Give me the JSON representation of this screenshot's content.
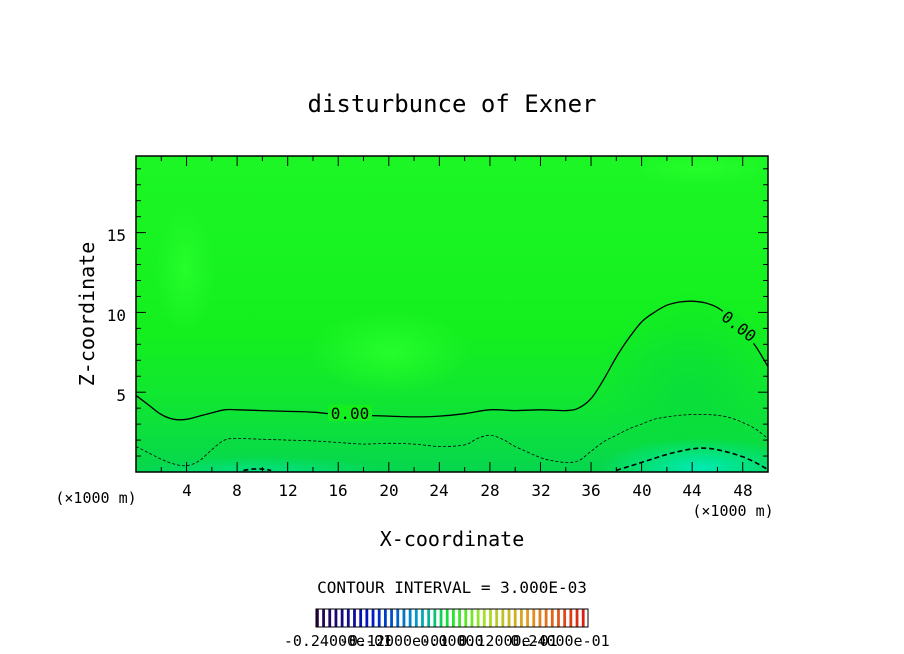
{
  "chart_data": {
    "type": "contour",
    "title": "disturbunce of Exner",
    "xlabel": "X-coordinate",
    "ylabel": "Z-coordinate",
    "x_unit_left": "(×1000 m)",
    "x_unit_right": "(×1000 m)",
    "xlim": [
      0,
      50
    ],
    "ylim": [
      0,
      19.8
    ],
    "x_ticks": [
      "4",
      "8",
      "12",
      "16",
      "20",
      "24",
      "28",
      "32",
      "36",
      "40",
      "44",
      "48"
    ],
    "y_ticks": [
      "5",
      "10",
      "15"
    ],
    "contour_interval_text": "CONTOUR INTERVAL = 3.000E-03",
    "colorbar_labels": [
      "-0.24000e-01",
      "-0.12000e-01",
      "0.00000",
      "0.12000e-01",
      "0.24000e-01"
    ],
    "contour_label": "0.00",
    "zero_contour": {
      "x": [
        0,
        1,
        2,
        3,
        4,
        5,
        6,
        7,
        8,
        10,
        12,
        14,
        16,
        18,
        20,
        22,
        24,
        26,
        28,
        30,
        32,
        34,
        35,
        36,
        37,
        38,
        39,
        40,
        41,
        42,
        43,
        44,
        45,
        46,
        47,
        48,
        49,
        50
      ],
      "y": [
        4.8,
        4.2,
        3.6,
        3.3,
        3.3,
        3.5,
        3.7,
        3.9,
        3.9,
        3.85,
        3.8,
        3.75,
        3.6,
        3.55,
        3.5,
        3.45,
        3.5,
        3.65,
        3.9,
        3.85,
        3.9,
        3.85,
        4.0,
        4.6,
        5.8,
        7.2,
        8.4,
        9.4,
        10.0,
        10.45,
        10.65,
        10.7,
        10.6,
        10.3,
        9.7,
        8.9,
        7.9,
        6.6
      ]
    },
    "neg_contour_1": {
      "x": [
        0,
        1,
        2,
        3,
        4,
        5,
        6,
        7,
        8,
        10,
        12,
        14,
        16,
        18,
        20,
        22,
        24,
        26,
        27,
        28,
        29,
        30,
        32,
        33,
        34,
        35,
        36,
        37,
        38,
        39,
        40,
        41,
        42,
        43,
        44,
        45,
        46,
        47,
        48,
        49,
        50
      ],
      "y": [
        1.6,
        1.2,
        0.8,
        0.5,
        0.4,
        0.7,
        1.4,
        2.0,
        2.1,
        2.05,
        2.0,
        1.95,
        1.85,
        1.75,
        1.8,
        1.75,
        1.6,
        1.7,
        2.1,
        2.3,
        2.05,
        1.6,
        0.9,
        0.7,
        0.6,
        0.7,
        1.3,
        1.9,
        2.3,
        2.7,
        3.0,
        3.3,
        3.45,
        3.55,
        3.6,
        3.6,
        3.55,
        3.4,
        3.1,
        2.7,
        2.1
      ]
    },
    "neg_contour_2": {
      "x": [
        38,
        39,
        40,
        41,
        42,
        43,
        44,
        45,
        46,
        47,
        48,
        49,
        50
      ],
      "y": [
        0.1,
        0.35,
        0.6,
        0.85,
        1.1,
        1.3,
        1.45,
        1.5,
        1.4,
        1.2,
        0.95,
        0.6,
        0.15
      ]
    },
    "neg_contour_3": {
      "x": [
        8.5,
        9.2,
        10,
        10.7
      ],
      "y": [
        0.1,
        0.18,
        0.18,
        0.1
      ]
    },
    "colors": {
      "field_base": "#14f01e",
      "field_light": "#22ff2a",
      "field_dark": "#0ad232",
      "field_cyan": "#00e6b4",
      "contour": "#000000"
    }
  }
}
